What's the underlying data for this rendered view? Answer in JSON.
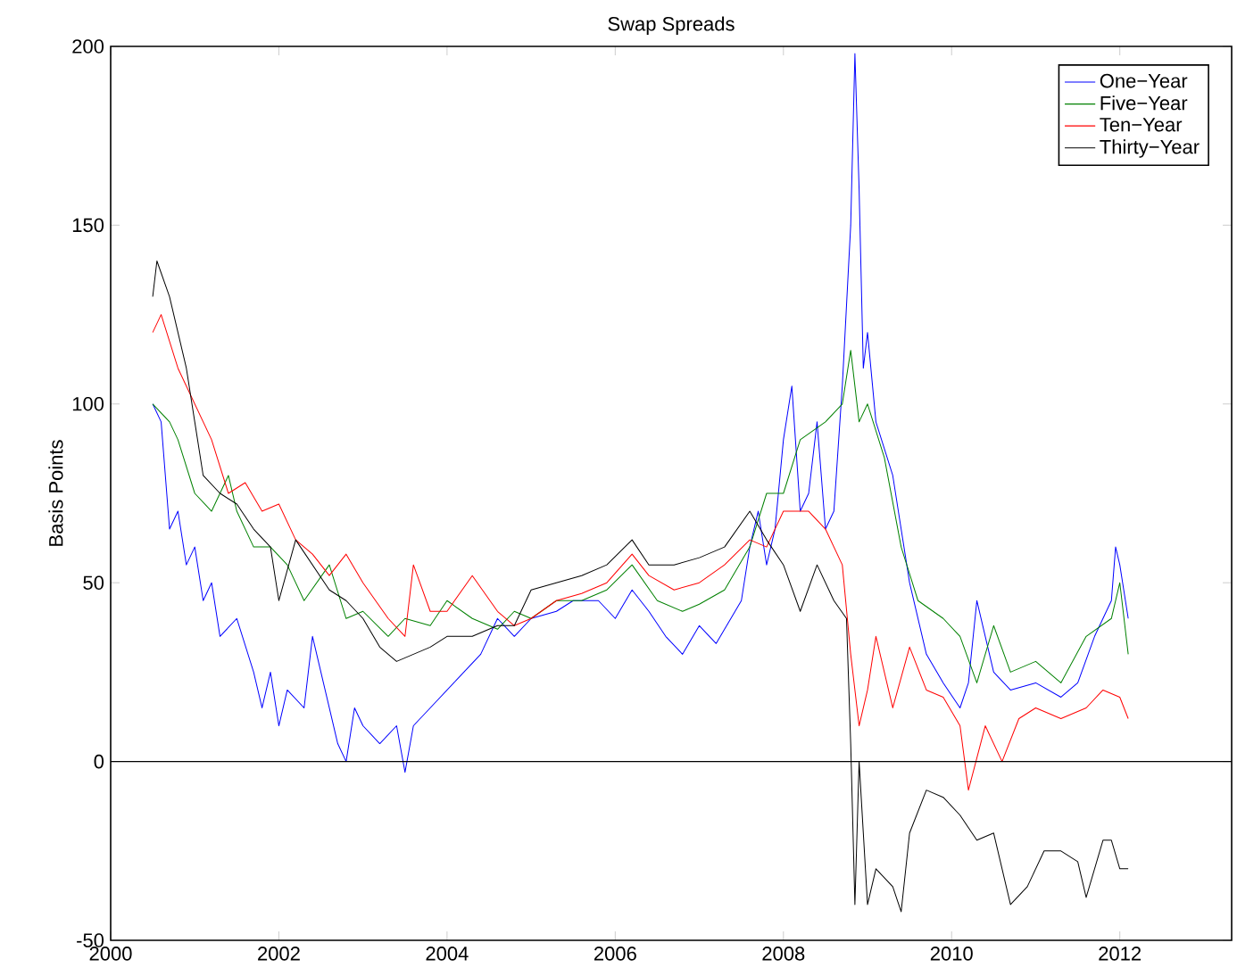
{
  "chart_data": {
    "type": "line",
    "title": "Swap Spreads",
    "ylabel": "Basis Points",
    "xlim": [
      2000,
      2013.33
    ],
    "xticks": [
      2000,
      2002,
      2004,
      2006,
      2008,
      2010,
      2012
    ],
    "ylim": [
      -50,
      200
    ],
    "yticks": [
      -50,
      0,
      50,
      100,
      150,
      200
    ],
    "legend": "top right",
    "grid": false,
    "ref_lines": [
      {
        "axis": "y",
        "value": 0,
        "color": "#000000"
      }
    ],
    "series": [
      {
        "name": "One−Year",
        "color": "#0000ff",
        "x": [
          2000.5,
          2000.6,
          2000.7,
          2000.8,
          2000.9,
          2001.0,
          2001.1,
          2001.2,
          2001.3,
          2001.5,
          2001.7,
          2001.8,
          2001.9,
          2002.0,
          2002.1,
          2002.3,
          2002.4,
          2002.5,
          2002.6,
          2002.7,
          2002.8,
          2002.9,
          2003.0,
          2003.2,
          2003.4,
          2003.5,
          2003.6,
          2003.8,
          2004.0,
          2004.2,
          2004.4,
          2004.6,
          2004.8,
          2005.0,
          2005.3,
          2005.5,
          2005.8,
          2006.0,
          2006.2,
          2006.4,
          2006.6,
          2006.8,
          2007.0,
          2007.2,
          2007.5,
          2007.6,
          2007.7,
          2007.8,
          2007.9,
          2008.0,
          2008.1,
          2008.2,
          2008.3,
          2008.4,
          2008.5,
          2008.6,
          2008.7,
          2008.8,
          2008.85,
          2008.9,
          2008.95,
          2009.0,
          2009.1,
          2009.3,
          2009.5,
          2009.7,
          2009.9,
          2010.1,
          2010.2,
          2010.3,
          2010.4,
          2010.5,
          2010.7,
          2011.0,
          2011.3,
          2011.5,
          2011.7,
          2011.9,
          2011.95,
          2012.0,
          2012.1
        ],
        "values": [
          100,
          95,
          65,
          70,
          55,
          60,
          45,
          50,
          35,
          40,
          25,
          15,
          25,
          10,
          20,
          15,
          35,
          25,
          15,
          5,
          0,
          15,
          10,
          5,
          10,
          -3,
          10,
          15,
          20,
          25,
          30,
          40,
          35,
          40,
          42,
          45,
          45,
          40,
          48,
          42,
          35,
          30,
          38,
          33,
          45,
          60,
          70,
          55,
          65,
          90,
          105,
          70,
          75,
          95,
          65,
          70,
          105,
          150,
          198,
          160,
          110,
          120,
          95,
          80,
          50,
          30,
          22,
          15,
          22,
          45,
          35,
          25,
          20,
          22,
          18,
          22,
          35,
          45,
          60,
          55,
          40
        ]
      },
      {
        "name": "Five−Year",
        "color": "#008000",
        "x": [
          2000.5,
          2000.7,
          2000.8,
          2001.0,
          2001.2,
          2001.4,
          2001.5,
          2001.7,
          2001.9,
          2002.1,
          2002.3,
          2002.6,
          2002.8,
          2003.0,
          2003.3,
          2003.5,
          2003.8,
          2004.0,
          2004.3,
          2004.6,
          2004.8,
          2005.0,
          2005.3,
          2005.6,
          2005.9,
          2006.2,
          2006.5,
          2006.8,
          2007.0,
          2007.3,
          2007.6,
          2007.8,
          2008.0,
          2008.2,
          2008.5,
          2008.7,
          2008.8,
          2008.9,
          2009.0,
          2009.2,
          2009.4,
          2009.6,
          2009.9,
          2010.1,
          2010.3,
          2010.5,
          2010.7,
          2011.0,
          2011.3,
          2011.6,
          2011.9,
          2012.0,
          2012.1
        ],
        "values": [
          100,
          95,
          90,
          75,
          70,
          80,
          70,
          60,
          60,
          55,
          45,
          55,
          40,
          42,
          35,
          40,
          38,
          45,
          40,
          37,
          42,
          40,
          45,
          45,
          48,
          55,
          45,
          42,
          44,
          48,
          60,
          75,
          75,
          90,
          95,
          100,
          115,
          95,
          100,
          85,
          60,
          45,
          40,
          35,
          22,
          38,
          25,
          28,
          22,
          35,
          40,
          50,
          30
        ]
      },
      {
        "name": "Ten−Year",
        "color": "#ff0000",
        "x": [
          2000.5,
          2000.6,
          2000.8,
          2001.0,
          2001.2,
          2001.4,
          2001.6,
          2001.8,
          2002.0,
          2002.2,
          2002.4,
          2002.6,
          2002.8,
          2003.0,
          2003.3,
          2003.5,
          2003.6,
          2003.8,
          2004.0,
          2004.3,
          2004.6,
          2004.8,
          2005.0,
          2005.3,
          2005.6,
          2005.9,
          2006.2,
          2006.4,
          2006.7,
          2007.0,
          2007.3,
          2007.6,
          2007.8,
          2008.0,
          2008.3,
          2008.5,
          2008.7,
          2008.8,
          2008.9,
          2009.0,
          2009.1,
          2009.3,
          2009.5,
          2009.7,
          2009.9,
          2010.1,
          2010.2,
          2010.4,
          2010.6,
          2010.8,
          2011.0,
          2011.3,
          2011.6,
          2011.8,
          2012.0,
          2012.1
        ],
        "values": [
          120,
          125,
          110,
          100,
          90,
          75,
          78,
          70,
          72,
          62,
          58,
          52,
          58,
          50,
          40,
          35,
          55,
          42,
          42,
          52,
          42,
          38,
          40,
          45,
          47,
          50,
          58,
          52,
          48,
          50,
          55,
          62,
          60,
          70,
          70,
          65,
          55,
          30,
          10,
          20,
          35,
          15,
          32,
          20,
          18,
          10,
          -8,
          10,
          0,
          12,
          15,
          12,
          15,
          20,
          18,
          12
        ]
      },
      {
        "name": "Thirty−Year",
        "color": "#000000",
        "x": [
          2000.5,
          2000.55,
          2000.7,
          2000.9,
          2001.0,
          2001.1,
          2001.3,
          2001.5,
          2001.7,
          2001.9,
          2002.0,
          2002.2,
          2002.4,
          2002.6,
          2002.8,
          2003.0,
          2003.2,
          2003.4,
          2003.6,
          2003.8,
          2004.0,
          2004.3,
          2004.6,
          2004.8,
          2005.0,
          2005.3,
          2005.6,
          2005.9,
          2006.2,
          2006.4,
          2006.7,
          2007.0,
          2007.3,
          2007.6,
          2007.8,
          2008.0,
          2008.2,
          2008.4,
          2008.6,
          2008.75,
          2008.8,
          2008.85,
          2008.9,
          2008.95,
          2009.0,
          2009.1,
          2009.3,
          2009.4,
          2009.5,
          2009.7,
          2009.9,
          2010.1,
          2010.3,
          2010.5,
          2010.7,
          2010.9,
          2011.1,
          2011.3,
          2011.5,
          2011.6,
          2011.8,
          2011.9,
          2012.0,
          2012.1
        ],
        "values": [
          130,
          140,
          130,
          110,
          95,
          80,
          75,
          72,
          65,
          60,
          45,
          62,
          55,
          48,
          45,
          40,
          32,
          28,
          30,
          32,
          35,
          35,
          38,
          38,
          48,
          50,
          52,
          55,
          62,
          55,
          55,
          57,
          60,
          70,
          62,
          55,
          42,
          55,
          45,
          40,
          5,
          -40,
          0,
          -20,
          -40,
          -30,
          -35,
          -42,
          -20,
          -8,
          -10,
          -15,
          -22,
          -20,
          -40,
          -35,
          -25,
          -25,
          -28,
          -38,
          -22,
          -22,
          -30,
          -30
        ]
      }
    ]
  }
}
